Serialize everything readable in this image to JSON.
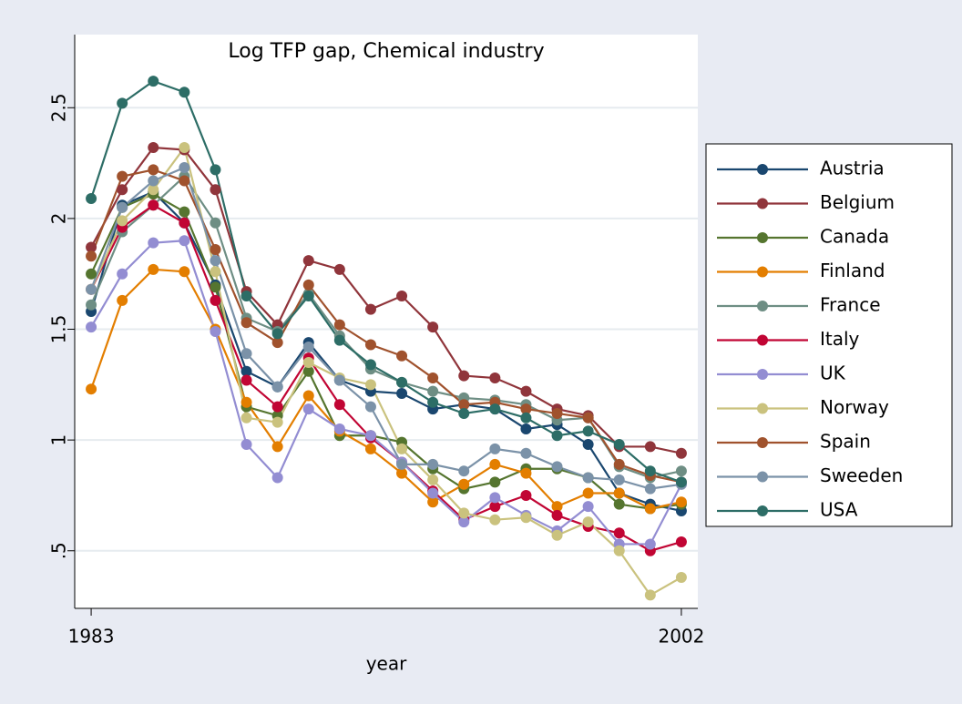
{
  "chart_data": {
    "type": "line",
    "title": "Log TFP gap, Chemical industry",
    "xlabel": "year",
    "x": [
      1983,
      1984,
      1985,
      1986,
      1987,
      1988,
      1989,
      1990,
      1991,
      1992,
      1993,
      1994,
      1995,
      1996,
      1997,
      1998,
      1999,
      2000,
      2001,
      2002
    ],
    "xlim": [
      1982.47,
      2002.53
    ],
    "xticks": [
      1983,
      2002
    ],
    "ylim": [
      0.24,
      2.83
    ],
    "yticks": [
      {
        "value": 0.5,
        "label": ".5"
      },
      1,
      1.5,
      2,
      2.5
    ],
    "grid": true,
    "legend": "right",
    "series": [
      {
        "name": "Austria",
        "color": "#1a476f",
        "values": [
          1.58,
          2.06,
          2.12,
          1.98,
          1.7,
          1.31,
          1.24,
          1.44,
          1.27,
          1.22,
          1.21,
          1.14,
          1.16,
          1.14,
          1.05,
          1.07,
          0.98,
          0.76,
          0.71,
          0.68
        ]
      },
      {
        "name": "Belgium",
        "color": "#90353b",
        "values": [
          1.87,
          2.13,
          2.32,
          2.31,
          2.13,
          1.67,
          1.52,
          1.81,
          1.77,
          1.59,
          1.65,
          1.51,
          1.29,
          1.28,
          1.22,
          1.14,
          1.11,
          0.97,
          0.97,
          0.94
        ]
      },
      {
        "name": "Canada",
        "color": "#55752f",
        "values": [
          1.75,
          2.05,
          2.11,
          2.03,
          1.69,
          1.15,
          1.11,
          1.31,
          1.02,
          1.02,
          0.99,
          0.87,
          0.78,
          0.81,
          0.87,
          0.87,
          0.83,
          0.71,
          0.69,
          0.71
        ]
      },
      {
        "name": "Finland",
        "color": "#e37e00",
        "values": [
          1.23,
          1.63,
          1.77,
          1.76,
          1.5,
          1.17,
          0.97,
          1.2,
          1.04,
          0.96,
          0.85,
          0.72,
          0.8,
          0.89,
          0.85,
          0.7,
          0.76,
          0.76,
          0.69,
          0.72
        ]
      },
      {
        "name": "France",
        "color": "#6e8e84",
        "values": [
          1.61,
          1.94,
          2.06,
          2.19,
          1.98,
          1.55,
          1.49,
          1.66,
          1.47,
          1.32,
          1.26,
          1.22,
          1.19,
          1.18,
          1.16,
          1.09,
          1.1,
          0.88,
          0.83,
          0.86
        ]
      },
      {
        "name": "Italy",
        "color": "#c10534",
        "values": [
          1.68,
          1.96,
          2.06,
          1.98,
          1.63,
          1.27,
          1.15,
          1.37,
          1.16,
          1.01,
          0.9,
          0.77,
          0.64,
          0.7,
          0.75,
          0.66,
          0.61,
          0.58,
          0.5,
          0.54
        ]
      },
      {
        "name": "UK",
        "color": "#938dd2",
        "values": [
          1.51,
          1.75,
          1.89,
          1.9,
          1.49,
          0.98,
          0.83,
          1.14,
          1.05,
          1.02,
          0.9,
          0.76,
          0.63,
          0.74,
          0.66,
          0.59,
          0.7,
          0.53,
          0.53,
          0.8
        ]
      },
      {
        "name": "Norway",
        "color": "#cac27e",
        "values": [
          1.68,
          1.99,
          2.13,
          2.32,
          1.76,
          1.1,
          1.08,
          1.35,
          1.28,
          1.25,
          0.96,
          0.82,
          0.67,
          0.64,
          0.65,
          0.57,
          0.63,
          0.5,
          0.3,
          0.38
        ]
      },
      {
        "name": "Spain",
        "color": "#a0522d",
        "values": [
          1.83,
          2.19,
          2.22,
          2.17,
          1.86,
          1.53,
          1.44,
          1.7,
          1.52,
          1.43,
          1.38,
          1.28,
          1.16,
          1.17,
          1.14,
          1.12,
          1.1,
          0.89,
          0.84,
          0.81
        ]
      },
      {
        "name": "Sweeden",
        "color": "#7b92a8",
        "values": [
          1.68,
          2.05,
          2.17,
          2.23,
          1.81,
          1.39,
          1.24,
          1.42,
          1.27,
          1.15,
          0.89,
          0.89,
          0.86,
          0.96,
          0.94,
          0.88,
          0.83,
          0.82,
          0.78,
          0.8
        ]
      },
      {
        "name": "USA",
        "color": "#2d6d66",
        "values": [
          2.09,
          2.52,
          2.62,
          2.57,
          2.22,
          1.65,
          1.48,
          1.65,
          1.45,
          1.34,
          1.26,
          1.17,
          1.12,
          1.14,
          1.1,
          1.02,
          1.04,
          0.98,
          0.86,
          0.81
        ]
      }
    ]
  }
}
